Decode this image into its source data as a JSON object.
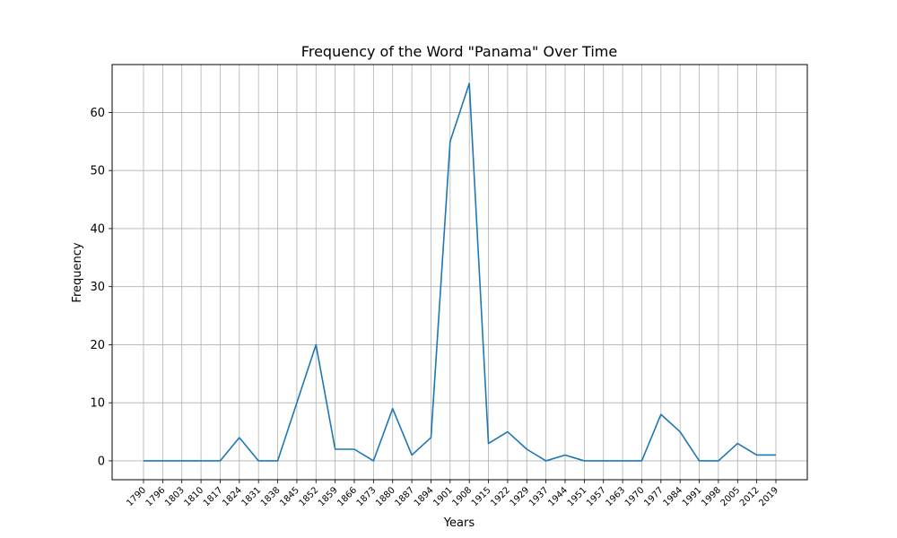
{
  "chart_data": {
    "type": "line",
    "title": "Frequency of the Word \"Panama\" Over Time",
    "xlabel": "Years",
    "ylabel": "Frequency",
    "grid": true,
    "ylim": [
      -3.25,
      68.25
    ],
    "yticks": [
      0,
      10,
      20,
      30,
      40,
      50,
      60
    ],
    "categories": [
      "1790",
      "1796",
      "1803",
      "1810",
      "1817",
      "1824",
      "1831",
      "1838",
      "1845",
      "1852",
      "1859",
      "1866",
      "1873",
      "1880",
      "1887",
      "1894",
      "1901",
      "1908",
      "1915",
      "1922",
      "1929",
      "1937",
      "1944",
      "1951",
      "1957",
      "1963",
      "1970",
      "1977",
      "1984",
      "1991",
      "1998",
      "2005",
      "2012",
      "2019"
    ],
    "series": [
      {
        "values": [
          0,
          0,
          0,
          0,
          0,
          4,
          0,
          0,
          10,
          20,
          2,
          2,
          0,
          9,
          1,
          4,
          55,
          65,
          3,
          5,
          2,
          0,
          1,
          0,
          0,
          0,
          0,
          8,
          5,
          0,
          0,
          3,
          1,
          1
        ],
        "color": "#1f77b4"
      }
    ],
    "grid_color": "#b0b0b0"
  }
}
